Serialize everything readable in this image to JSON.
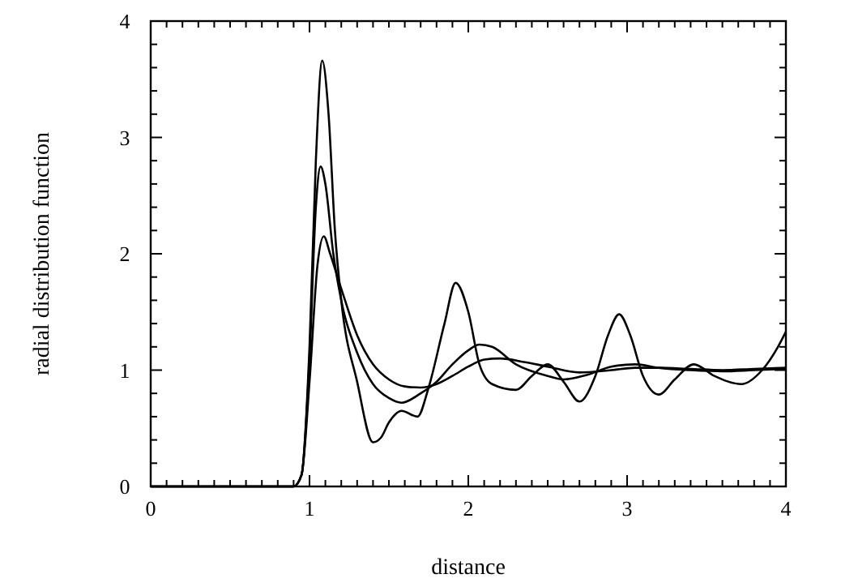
{
  "chart_data": {
    "type": "line",
    "xlabel": "distance",
    "ylabel": "radial distribution function",
    "xlim": [
      0,
      4
    ],
    "ylim": [
      0,
      4
    ],
    "xticks": [
      0,
      {
        "value": 0.1,
        "label": null
      },
      {
        "value": 0.2,
        "label": null
      },
      {
        "value": 0.3,
        "label": null
      },
      {
        "value": 0.4,
        "label": null
      },
      {
        "value": 0.5,
        "label": null
      },
      {
        "value": 0.6,
        "label": null
      },
      {
        "value": 0.7,
        "label": null
      },
      {
        "value": 0.8,
        "label": null
      },
      {
        "value": 0.9,
        "label": null
      },
      1,
      {
        "value": 1.1,
        "label": null
      },
      {
        "value": 1.2,
        "label": null
      },
      {
        "value": 1.3,
        "label": null
      },
      {
        "value": 1.4,
        "label": null
      },
      {
        "value": 1.5,
        "label": null
      },
      {
        "value": 1.6,
        "label": null
      },
      {
        "value": 1.7,
        "label": null
      },
      {
        "value": 1.8,
        "label": null
      },
      {
        "value": 1.9,
        "label": null
      },
      2,
      {
        "value": 2.1,
        "label": null
      },
      {
        "value": 2.2,
        "label": null
      },
      {
        "value": 2.3,
        "label": null
      },
      {
        "value": 2.4,
        "label": null
      },
      {
        "value": 2.5,
        "label": null
      },
      {
        "value": 2.6,
        "label": null
      },
      {
        "value": 2.7,
        "label": null
      },
      {
        "value": 2.8,
        "label": null
      },
      {
        "value": 2.9,
        "label": null
      },
      3,
      {
        "value": 3.1,
        "label": null
      },
      {
        "value": 3.2,
        "label": null
      },
      {
        "value": 3.3,
        "label": null
      },
      {
        "value": 3.4,
        "label": null
      },
      {
        "value": 3.5,
        "label": null
      },
      {
        "value": 3.6,
        "label": null
      },
      {
        "value": 3.7,
        "label": null
      },
      {
        "value": 3.8,
        "label": null
      },
      {
        "value": 3.9,
        "label": null
      },
      4
    ],
    "yticks": [
      0,
      {
        "value": 0.2,
        "label": null
      },
      {
        "value": 0.4,
        "label": null
      },
      {
        "value": 0.6,
        "label": null
      },
      {
        "value": 0.8,
        "label": null
      },
      1,
      {
        "value": 1.2,
        "label": null
      },
      {
        "value": 1.4,
        "label": null
      },
      {
        "value": 1.6,
        "label": null
      },
      {
        "value": 1.8,
        "label": null
      },
      2,
      {
        "value": 2.2,
        "label": null
      },
      {
        "value": 2.4,
        "label": null
      },
      {
        "value": 2.6,
        "label": null
      },
      {
        "value": 2.8,
        "label": null
      },
      3,
      {
        "value": 3.2,
        "label": null
      },
      {
        "value": 3.4,
        "label": null
      },
      {
        "value": 3.6,
        "label": null
      },
      {
        "value": 3.8,
        "label": null
      },
      4
    ],
    "grid": false,
    "marker": "none",
    "line_style": "solid",
    "series": [
      {
        "color": "#000000",
        "x": [
          0,
          0.9,
          0.95,
          1.0,
          1.04,
          1.08,
          1.12,
          1.16,
          1.2,
          1.3,
          1.4,
          1.45,
          1.5,
          1.58,
          1.68,
          1.75,
          1.85,
          1.92,
          2.0,
          2.07,
          2.15,
          2.3,
          2.4,
          2.5,
          2.6,
          2.7,
          2.8,
          2.88,
          2.95,
          3.02,
          3.1,
          3.2,
          3.3,
          3.42,
          3.55,
          3.72,
          3.85,
          3.95,
          4.0
        ],
        "values": [
          0,
          0,
          0.1,
          1.2,
          2.8,
          3.66,
          3.2,
          2.2,
          1.6,
          0.9,
          0.38,
          0.42,
          0.55,
          0.65,
          0.6,
          0.85,
          1.4,
          1.75,
          1.5,
          1.05,
          0.88,
          0.83,
          0.95,
          1.05,
          0.9,
          0.73,
          0.95,
          1.3,
          1.48,
          1.3,
          0.95,
          0.79,
          0.92,
          1.05,
          0.95,
          0.88,
          1.0,
          1.2,
          1.33
        ]
      },
      {
        "color": "#000000",
        "x": [
          0,
          0.9,
          0.95,
          1.0,
          1.04,
          1.07,
          1.1,
          1.15,
          1.2,
          1.3,
          1.4,
          1.5,
          1.58,
          1.7,
          1.8,
          1.9,
          2.0,
          2.07,
          2.15,
          2.3,
          2.5,
          2.6,
          2.75,
          2.9,
          3.05,
          3.2,
          3.4,
          3.6,
          3.8,
          4.0
        ],
        "values": [
          0,
          0,
          0.1,
          1.1,
          2.4,
          2.75,
          2.6,
          2.0,
          1.6,
          1.15,
          0.88,
          0.76,
          0.72,
          0.8,
          0.9,
          1.05,
          1.17,
          1.22,
          1.2,
          1.05,
          0.95,
          0.92,
          0.96,
          1.03,
          1.05,
          1.02,
          1.0,
          0.99,
          1.0,
          1.01
        ]
      },
      {
        "color": "#000000",
        "x": [
          0,
          0.9,
          0.95,
          1.0,
          1.05,
          1.09,
          1.13,
          1.2,
          1.3,
          1.4,
          1.5,
          1.6,
          1.7,
          1.8,
          1.9,
          2.0,
          2.1,
          2.2,
          2.35,
          2.5,
          2.7,
          2.9,
          3.05,
          3.2,
          3.4,
          3.6,
          3.8,
          4.0
        ],
        "values": [
          0,
          0,
          0.1,
          0.9,
          1.9,
          2.15,
          2.0,
          1.7,
          1.3,
          1.05,
          0.92,
          0.86,
          0.85,
          0.88,
          0.95,
          1.03,
          1.09,
          1.1,
          1.07,
          1.03,
          0.98,
          1.0,
          1.02,
          1.02,
          1.01,
          1.0,
          1.01,
          1.02
        ]
      }
    ]
  }
}
